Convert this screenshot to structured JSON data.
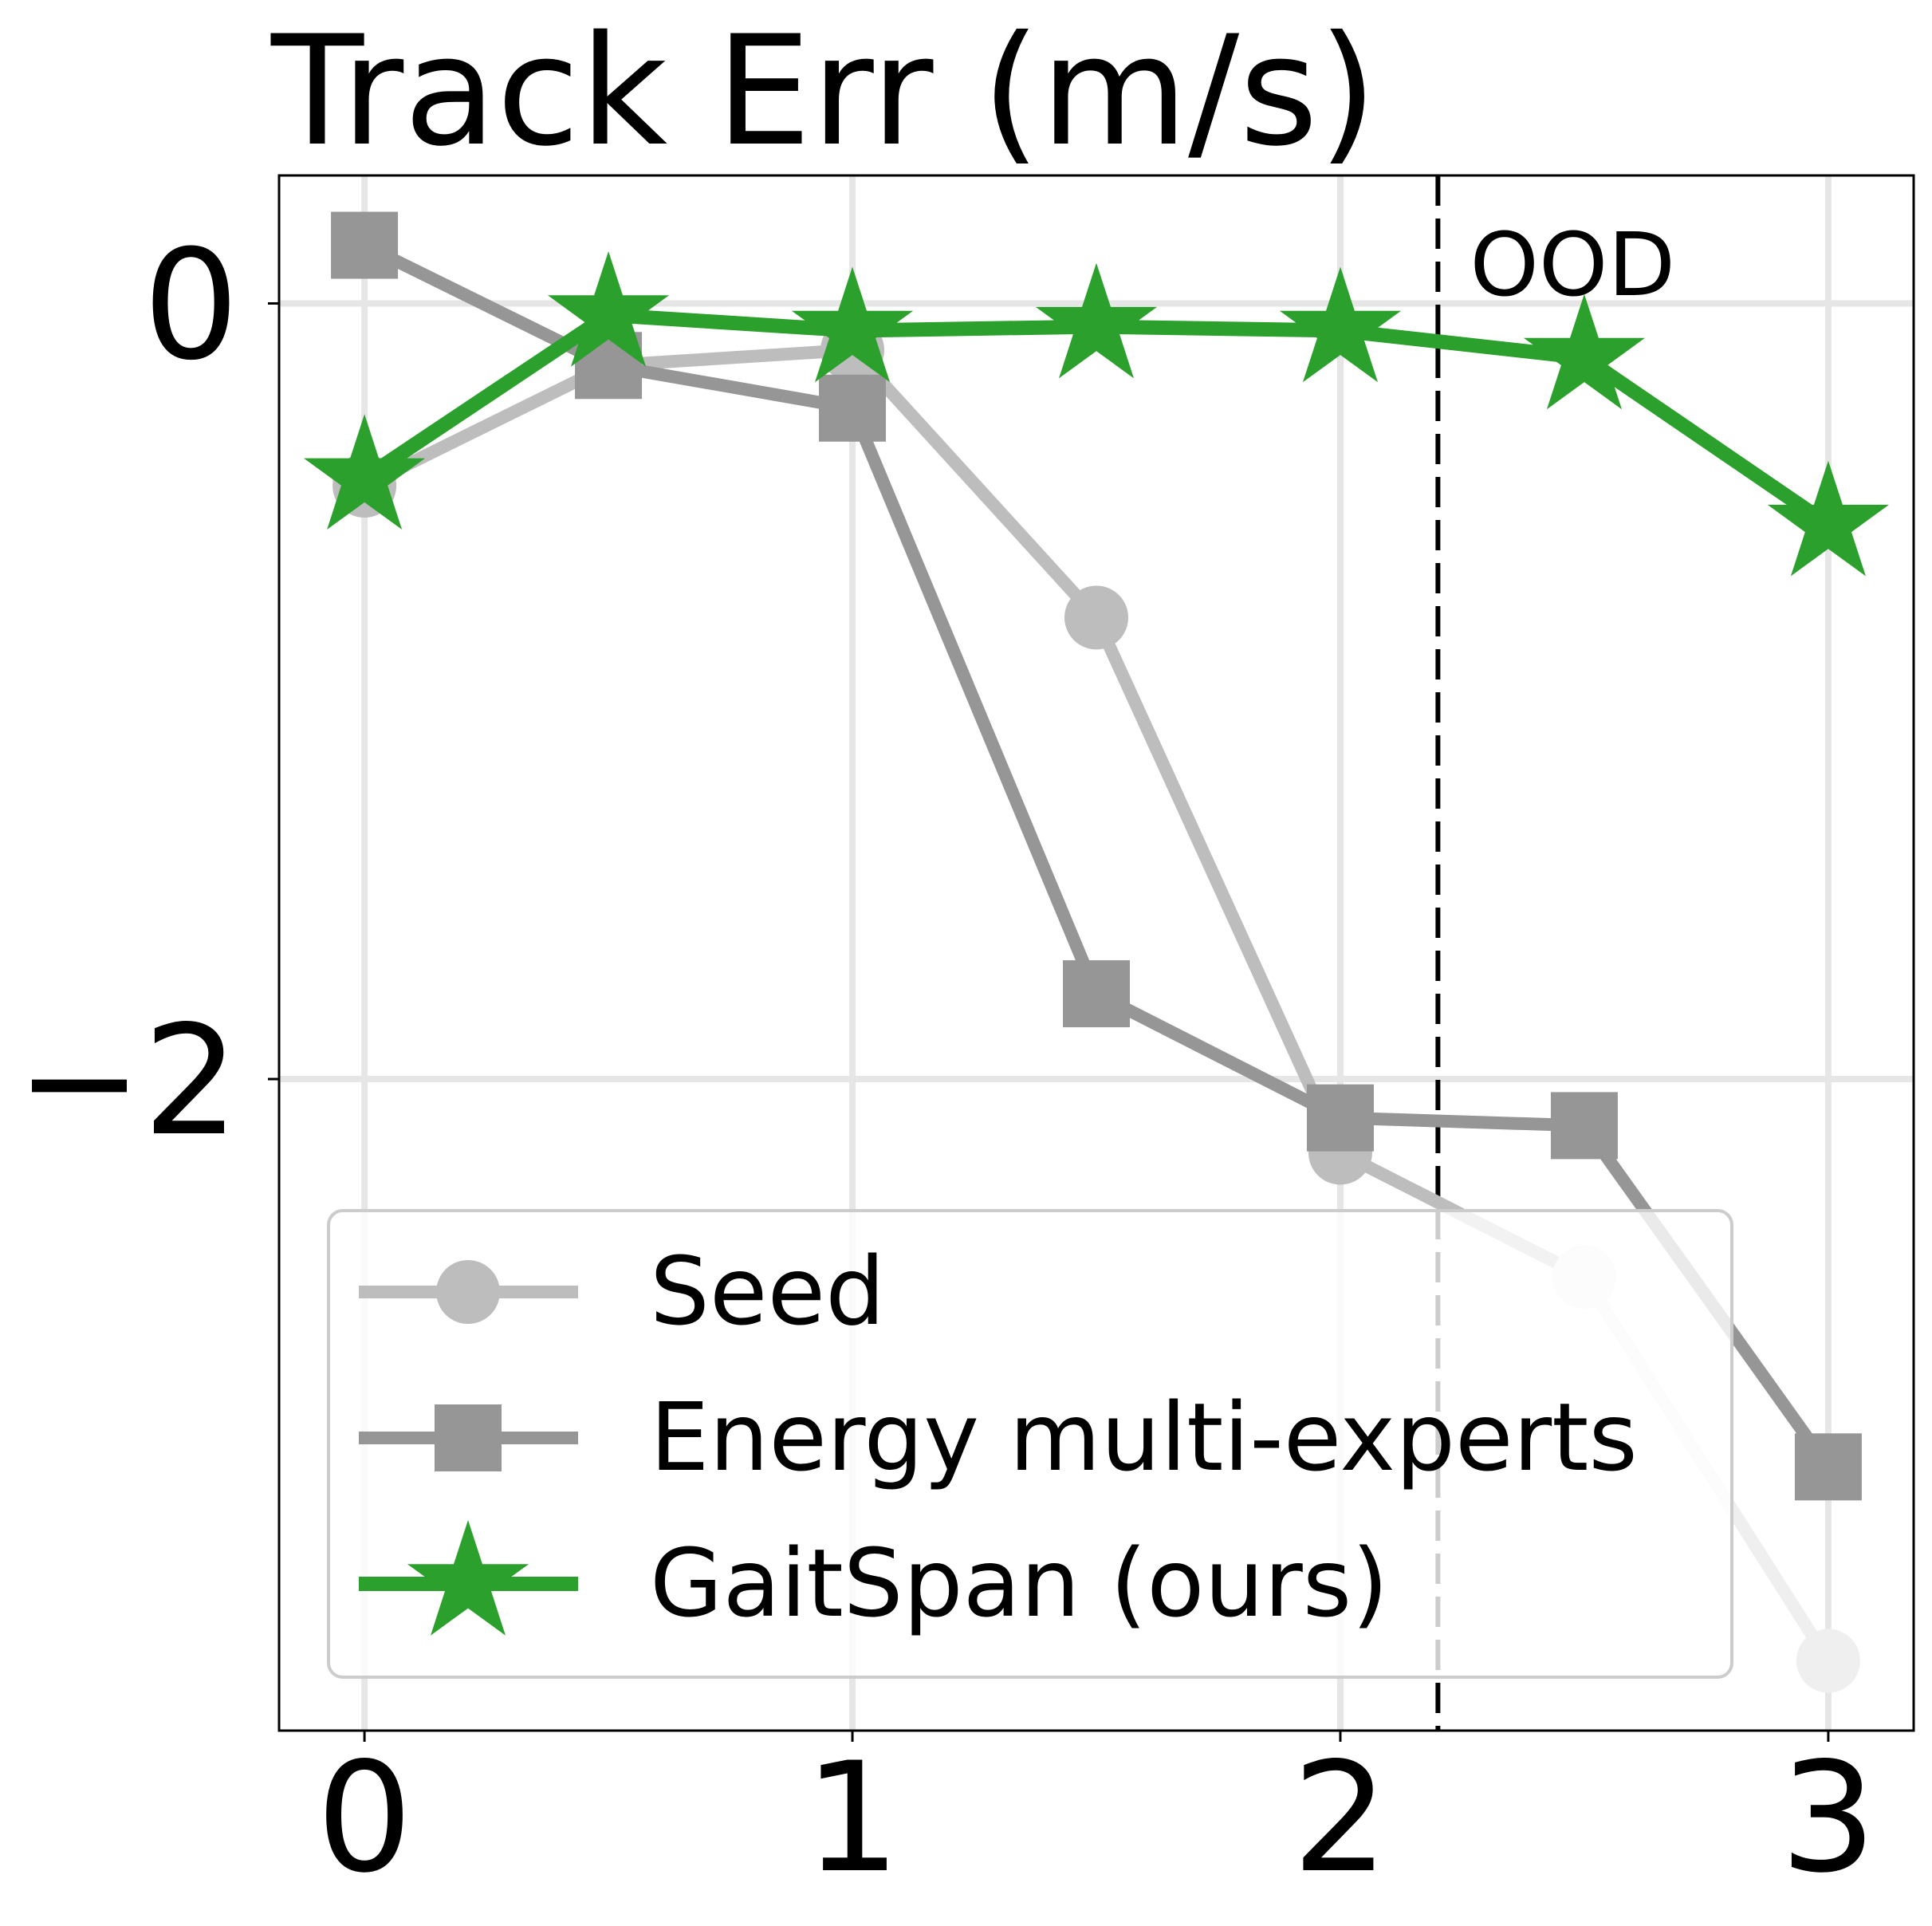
{
  "chart_data": {
    "type": "line",
    "title": "Track Err (m/s)",
    "xlabel": "",
    "ylabel": "",
    "xlim": [
      -0.175,
      3.175
    ],
    "ylim": [
      -3.68,
      0.33
    ],
    "xticks": [
      0,
      1,
      2,
      3
    ],
    "xtick_labels": [
      "0",
      "1",
      "2",
      "3"
    ],
    "yticks": [
      0,
      -2
    ],
    "ytick_labels": [
      "0",
      "−2"
    ],
    "grid": true,
    "legend_position": "lower-left",
    "annotations": [
      {
        "text": "OOD",
        "type": "vertical-dashed-line",
        "x": 2.2
      }
    ],
    "x": [
      0,
      0.5,
      1,
      1.5,
      2,
      2.5,
      3
    ],
    "series": [
      {
        "name": "Seed",
        "marker": "circle",
        "color": "#bdbdbd",
        "ood_color": "#efefef",
        "values": [
          -0.47,
          -0.16,
          -0.12,
          -0.81,
          -2.19,
          -2.51,
          -3.5
        ]
      },
      {
        "name": "Energy multi-experts",
        "marker": "square",
        "color": "#969696",
        "ood_color": "#969696",
        "values": [
          0.15,
          -0.16,
          -0.27,
          -1.78,
          -2.1,
          -2.12,
          -3.0
        ]
      },
      {
        "name": "GaitSpan (ours)",
        "marker": "star",
        "color": "#2ca02c",
        "ood_color": "#2ca02c",
        "values": [
          -0.45,
          -0.03,
          -0.07,
          -0.06,
          -0.07,
          -0.14,
          -0.57
        ]
      }
    ]
  }
}
